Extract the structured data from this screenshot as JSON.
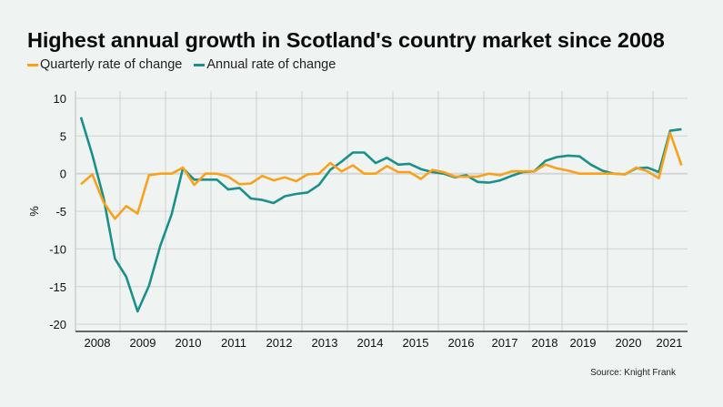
{
  "chart_data": {
    "type": "line",
    "title": "Highest annual growth in Scotland's country market since 2008",
    "xlabel": "",
    "ylabel": "%",
    "ylim": [
      -21,
      10.5
    ],
    "yticks": [
      10,
      5,
      0,
      -5,
      -10,
      -15,
      -20
    ],
    "ytick_labels": [
      "10",
      "5",
      "0",
      "-5",
      "-10",
      "-15",
      "-20"
    ],
    "xtick_labels": [
      "2008",
      "2009",
      "2010",
      "2011",
      "2012",
      "2013",
      "2014",
      "2015",
      "2016",
      "2017",
      "2018",
      "2019",
      "2020",
      "2021"
    ],
    "x": [
      "2008 Q1",
      "2008 Q2",
      "2008 Q3",
      "2008 Q4",
      "2009 Q1",
      "2009 Q2",
      "2009 Q3",
      "2009 Q4",
      "2010 Q1",
      "2010 Q2",
      "2010 Q3",
      "2010 Q4",
      "2011 Q1",
      "2011 Q2",
      "2011 Q3",
      "2011 Q4",
      "2012 Q1",
      "2012 Q2",
      "2012 Q3",
      "2012 Q4",
      "2013 Q1",
      "2013 Q2",
      "2013 Q3",
      "2013 Q4",
      "2014 Q1",
      "2014 Q2",
      "2014 Q3",
      "2014 Q4",
      "2015 Q1",
      "2015 Q2",
      "2015 Q3",
      "2015 Q4",
      "2016 Q1",
      "2016 Q2",
      "2016 Q3",
      "2016 Q4",
      "2017 Q1",
      "2017 Q2",
      "2017 Q3",
      "2017 Q4",
      "2018 Q1",
      "2018 Q2",
      "2018 Q3",
      "2018 Q4",
      "2019 Q1",
      "2019 Q2",
      "2019 Q3",
      "2019 Q4",
      "2020 Q1",
      "2020 Q2",
      "2020 Q3",
      "2020 Q4",
      "2021 Q1",
      "2021 Q2"
    ],
    "series": [
      {
        "name": "Quarterly rate of change",
        "color": "#f9a11b",
        "values": [
          -1.4,
          -0.1,
          -3.8,
          -6.0,
          -4.3,
          -5.3,
          -0.2,
          0,
          0,
          0.8,
          -1.5,
          0,
          0,
          -0.4,
          -1.4,
          -1.3,
          -0.3,
          -0.9,
          -0.5,
          -1.0,
          -0.1,
          0,
          1.4,
          0.3,
          1.1,
          0,
          0,
          1.0,
          0.2,
          0.2,
          -0.7,
          0.5,
          0.2,
          -0.4,
          -0.4,
          -0.4,
          0,
          -0.2,
          0.3,
          0.3,
          0.3,
          1.2,
          0.7,
          0.4,
          0,
          0,
          0,
          0,
          -0.1,
          0.8,
          0.3,
          -0.6,
          5.4,
          1.1
        ]
      },
      {
        "name": "Annual rate of change",
        "color": "#1a9089",
        "values": [
          7.5,
          2.5,
          -3.2,
          -11.3,
          -13.7,
          -18.3,
          -14.9,
          -9.6,
          -5.4,
          0.7,
          -0.8,
          -0.8,
          -0.8,
          -2.1,
          -1.9,
          -3.3,
          -3.5,
          -3.9,
          -3.0,
          -2.7,
          -2.5,
          -1.5,
          0.5,
          1.6,
          2.8,
          2.8,
          1.4,
          2.1,
          1.2,
          1.3,
          0.6,
          0.2,
          0,
          -0.5,
          -0.2,
          -1.1,
          -1.2,
          -0.9,
          -0.3,
          0.2,
          0.3,
          1.7,
          2.2,
          2.4,
          2.3,
          1.2,
          0.4,
          0,
          -0.1,
          0.7,
          0.8,
          0.2,
          5.7,
          5.9
        ]
      }
    ],
    "grid": true,
    "legend": "top-left",
    "source": "Source: Knight Frank"
  }
}
